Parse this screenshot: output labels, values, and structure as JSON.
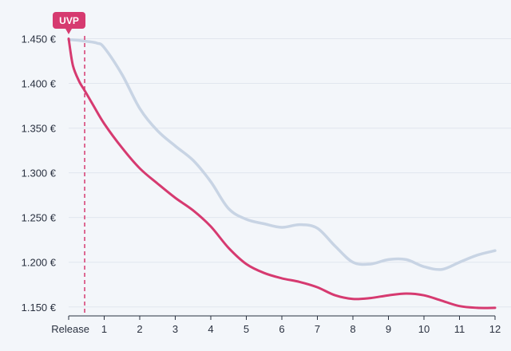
{
  "chart_data": {
    "type": "line",
    "xlabel": "",
    "ylabel": "",
    "x_tick_labels": [
      "Release",
      "1",
      "2",
      "3",
      "4",
      "5",
      "6",
      "7",
      "8",
      "9",
      "10",
      "11",
      "12"
    ],
    "y_tick_labels": [
      "1.450 €",
      "1.400 €",
      "1.350 €",
      "1.300 €",
      "1.250 €",
      "1.200 €",
      "1.150 €"
    ],
    "y_ticks": [
      1450,
      1400,
      1350,
      1300,
      1250,
      1200,
      1150
    ],
    "xlim": [
      0,
      12
    ],
    "ylim": [
      1140,
      1462
    ],
    "grid": true,
    "annotation": {
      "label": "UVP",
      "x": 0.45
    },
    "series": [
      {
        "color": "#d63a70",
        "x": [
          0,
          0.12,
          0.3,
          0.45,
          0.7,
          1,
          1.5,
          2,
          2.5,
          3,
          3.5,
          4,
          4.5,
          5,
          5.5,
          6,
          6.5,
          7,
          7.5,
          8,
          8.5,
          9,
          9.5,
          10,
          10.5,
          11,
          11.5,
          12
        ],
        "y": [
          1450,
          1420,
          1402,
          1392,
          1375,
          1355,
          1328,
          1305,
          1288,
          1272,
          1258,
          1240,
          1216,
          1198,
          1188,
          1182,
          1178,
          1172,
          1163,
          1159,
          1160,
          1163,
          1165,
          1163,
          1157,
          1151,
          1149,
          1149
        ]
      },
      {
        "color": "#c8d4e4",
        "x": [
          0,
          0.3,
          0.5,
          0.8,
          1,
          1.5,
          2,
          2.5,
          3,
          3.5,
          4,
          4.5,
          5,
          5.5,
          6,
          6.5,
          7,
          7.5,
          8,
          8.5,
          9,
          9.5,
          10,
          10.5,
          11,
          11.5,
          12
        ],
        "y": [
          1449,
          1448,
          1447,
          1445,
          1440,
          1410,
          1372,
          1347,
          1330,
          1314,
          1290,
          1260,
          1248,
          1243,
          1239,
          1242,
          1238,
          1218,
          1200,
          1198,
          1203,
          1203,
          1195,
          1192,
          1200,
          1208,
          1213
        ]
      }
    ]
  }
}
